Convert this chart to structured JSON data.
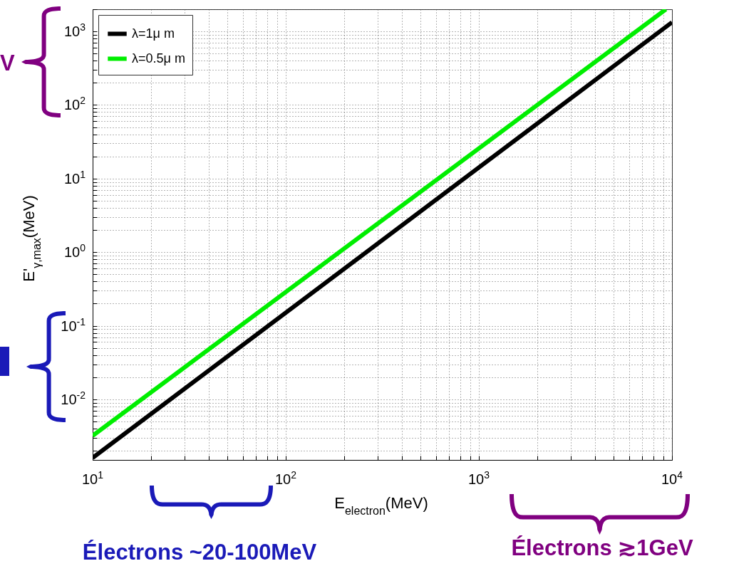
{
  "chart_data": {
    "type": "line",
    "xlabel": "E$_{electron}$(MeV)",
    "ylabel": "E'$_{γ,max}$(MeV)",
    "log": "xy",
    "grid": true,
    "legend": "top left",
    "line_style": "solid",
    "xlim": [
      10,
      10000
    ],
    "ylim": [
      0.0015,
      2000
    ],
    "xticks": [
      {
        "value": 10,
        "label": "10$^{1}$"
      },
      {
        "value": 100,
        "label": "10$^{2}$"
      },
      {
        "value": 1000,
        "label": "10$^{3}$"
      },
      {
        "value": 10000,
        "label": "10$^{4}$"
      }
    ],
    "yticks": [
      {
        "value": 0.01,
        "label": "10$^{-2}$"
      },
      {
        "value": 0.1,
        "label": "10$^{-1}$"
      },
      {
        "value": 1,
        "label": "10$^{0}$"
      },
      {
        "value": 10,
        "label": "10$^{1}$"
      },
      {
        "value": 100,
        "label": "10$^{2}$"
      },
      {
        "value": 1000,
        "label": "10$^{3}$"
      }
    ],
    "series": [
      {
        "name": "λ=1μ m",
        "color": "#000000",
        "x": [
          10,
          10000
        ],
        "values": [
          0.0016,
          1330
        ]
      },
      {
        "name": "λ=0.5μ m",
        "color": "#00ee00",
        "x": [
          10,
          9300
        ],
        "values": [
          0.0032,
          2000
        ]
      }
    ],
    "annotations": [
      "V",
      "Électrons ~20-100MeV",
      "Électrons ≳1GeV"
    ]
  }
}
